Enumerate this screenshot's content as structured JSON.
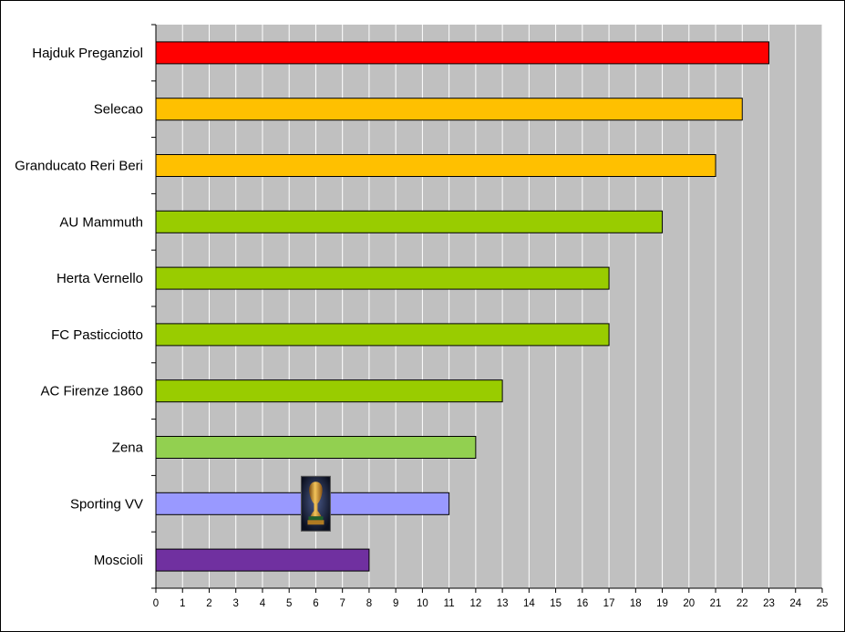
{
  "chart_data": {
    "type": "bar",
    "orientation": "horizontal",
    "title": "",
    "xlabel": "",
    "ylabel": "",
    "xlim": [
      0,
      25
    ],
    "x_ticks": [
      "0",
      "1",
      "2",
      "3",
      "4",
      "5",
      "6",
      "7",
      "8",
      "9",
      "10",
      "11",
      "12",
      "13",
      "14",
      "15",
      "16",
      "17",
      "18",
      "19",
      "20",
      "21",
      "22",
      "23",
      "24",
      "25"
    ],
    "grid": "vertical",
    "legend": "none",
    "plot_background": "#c0c0c0",
    "grid_color": "#ffffff",
    "categories": [
      "Hajduk Preganziol",
      "Selecao",
      "Granducato Reri Beri",
      "AU Mammuth",
      "Herta Vernello",
      "FC Pasticciotto",
      "AC Firenze 1860",
      "Zena",
      "Sporting VV",
      "Moscioli"
    ],
    "values": [
      23,
      22,
      21,
      19,
      17,
      17,
      13,
      12,
      11,
      8
    ],
    "bar_colors": [
      "#ff0000",
      "#ffc000",
      "#ffc000",
      "#99cc00",
      "#99cc00",
      "#99cc00",
      "#99cc00",
      "#92d050",
      "#9999ff",
      "#7030a0"
    ],
    "annotation": {
      "type": "image",
      "icon": "trophy-icon",
      "category": "Sporting VV",
      "x": 6
    }
  }
}
